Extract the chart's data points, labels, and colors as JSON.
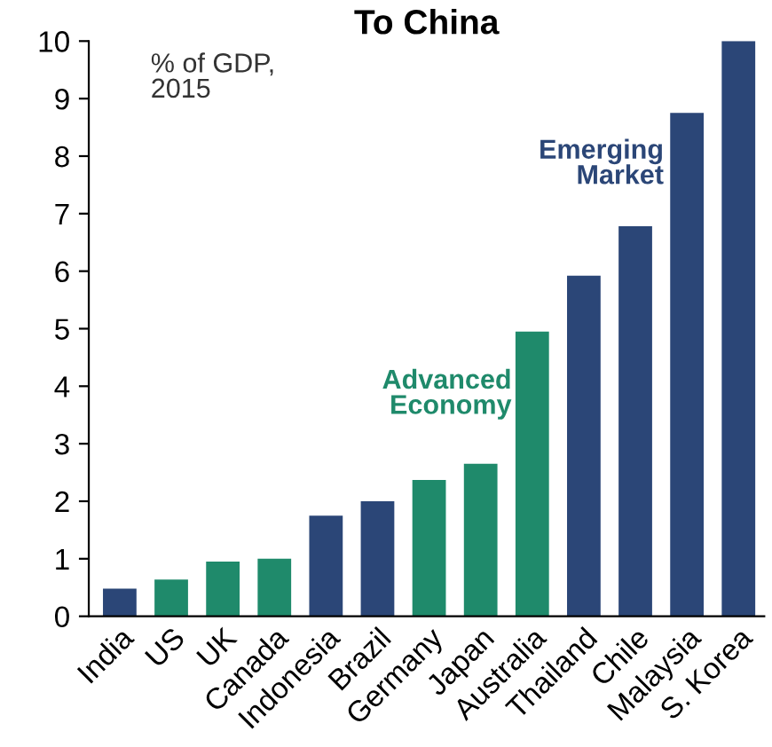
{
  "chart_data": {
    "type": "bar",
    "title": "To China",
    "categories": [
      "India",
      "US",
      "UK",
      "Canada",
      "Indonesia",
      "Brazil",
      "Germany",
      "Japan",
      "Australia",
      "Thailand",
      "Chile",
      "Malaysia",
      "S. Korea"
    ],
    "values": [
      0.48,
      0.64,
      0.95,
      1.0,
      1.75,
      2.0,
      2.37,
      2.65,
      4.95,
      5.92,
      6.78,
      8.75,
      10.0
    ],
    "colors": [
      "#2b4677",
      "#1f8a6b",
      "#1f8a6b",
      "#1f8a6b",
      "#2b4677",
      "#2b4677",
      "#1f8a6b",
      "#1f8a6b",
      "#1f8a6b",
      "#2b4677",
      "#2b4677",
      "#2b4677",
      "#2b4677"
    ],
    "ylim": [
      0,
      10
    ],
    "yticks": [
      0,
      1,
      2,
      3,
      4,
      5,
      6,
      7,
      8,
      9,
      10
    ],
    "grid": false,
    "annotations": [
      "% of GDP,\n2015",
      "Advanced\nEconomy",
      "Emerging\nMarket"
    ]
  }
}
